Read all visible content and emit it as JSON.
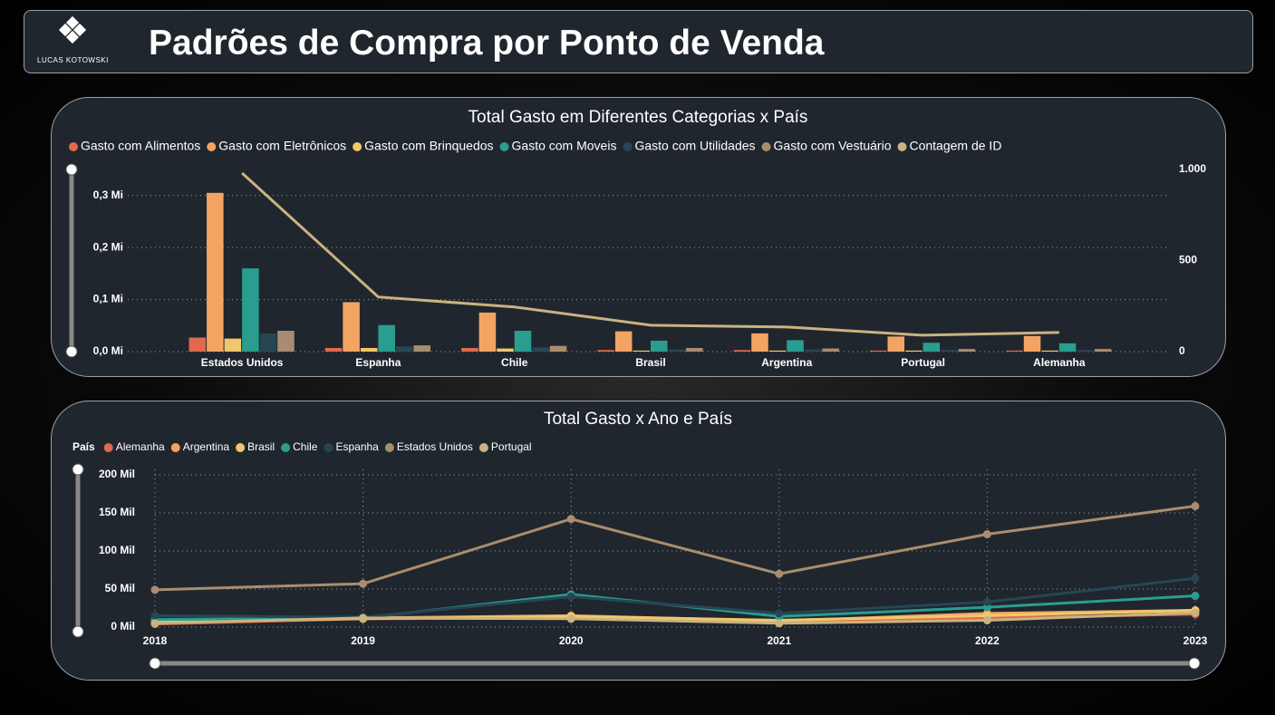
{
  "header": {
    "logo_text": "LUCAS KOTOWSKI",
    "title": "Padrões de Compra por Ponto de Venda"
  },
  "chart_data": [
    {
      "type": "bar",
      "title": "Total Gasto em Diferentes Categorias x País",
      "categories": [
        "Estados Unidos",
        "Espanha",
        "Chile",
        "Brasil",
        "Argentina",
        "Portugal",
        "Alemanha"
      ],
      "series": [
        {
          "name": "Gasto com Alimentos",
          "color": "#e0694f",
          "values": [
            27000,
            7000,
            7000,
            3000,
            3000,
            2000,
            2000
          ]
        },
        {
          "name": "Gasto com Eletrônicos",
          "color": "#f4a462",
          "values": [
            305000,
            95000,
            75000,
            39000,
            35000,
            29000,
            30000
          ]
        },
        {
          "name": "Gasto com Brinquedos",
          "color": "#f0c86b",
          "values": [
            25000,
            7000,
            6000,
            2000,
            2000,
            2000,
            2000
          ]
        },
        {
          "name": "Gasto com Moveis",
          "color": "#2a9d8f",
          "values": [
            160000,
            51000,
            40000,
            21000,
            22000,
            17000,
            16000
          ]
        },
        {
          "name": "Gasto com Utilidades",
          "color": "#264653",
          "values": [
            35000,
            10000,
            8000,
            4000,
            4000,
            3000,
            3000
          ]
        },
        {
          "name": "Gasto com Vestuário",
          "color": "#a98d70",
          "values": [
            40000,
            12000,
            11000,
            7000,
            6000,
            5000,
            5000
          ]
        },
        {
          "name": "Contagem de ID",
          "color": "#c9b380",
          "type": "line",
          "axis": "y2",
          "values": [
            980,
            300,
            245,
            145,
            135,
            90,
            105
          ]
        }
      ],
      "ylim": [
        0,
        350000
      ],
      "yticks": [
        {
          "value": 0,
          "label": "0,0 Mi"
        },
        {
          "value": 100000,
          "label": "0,1 Mi"
        },
        {
          "value": 200000,
          "label": "0,2 Mi"
        },
        {
          "value": 300000,
          "label": "0,3 Mi"
        }
      ],
      "y2lim": [
        0,
        1000
      ],
      "y2ticks": [
        0,
        500,
        {
          "value": 1000,
          "label": "1.000"
        }
      ],
      "grid": true
    },
    {
      "type": "line",
      "title": "Total Gasto x Ano e País",
      "legend_title": "País",
      "x": [
        2018,
        2019,
        2020,
        2021,
        2022,
        2023
      ],
      "series": [
        {
          "name": "Alemanha",
          "color": "#e0694f",
          "values": [
            4000,
            11000,
            12000,
            6000,
            12000,
            17000
          ]
        },
        {
          "name": "Argentina",
          "color": "#f4a462",
          "values": [
            6000,
            12000,
            15000,
            8000,
            18000,
            22000
          ]
        },
        {
          "name": "Brasil",
          "color": "#f0c86b",
          "values": [
            7000,
            11000,
            14000,
            9000,
            15000,
            22000
          ]
        },
        {
          "name": "Chile",
          "color": "#2a9d8f",
          "values": [
            10000,
            12000,
            43000,
            14000,
            26000,
            41000
          ]
        },
        {
          "name": "Espanha",
          "color": "#264653",
          "values": [
            15000,
            13000,
            40000,
            18000,
            33000,
            64000
          ]
        },
        {
          "name": "Estados Unidos",
          "color": "#a98d70",
          "values": [
            49000,
            57000,
            142000,
            70000,
            122000,
            159000
          ]
        },
        {
          "name": "Portugal",
          "color": "#c9b380",
          "values": [
            5000,
            12000,
            11000,
            5000,
            9000,
            19000
          ]
        }
      ],
      "xlim": [
        2018,
        2023
      ],
      "xticks": [
        2018,
        2019,
        2020,
        2021,
        2022,
        2023
      ],
      "ylim": [
        0,
        200000
      ],
      "yticks": [
        {
          "value": 0,
          "label": "0 Mil"
        },
        {
          "value": 50000,
          "label": "50 Mil"
        },
        {
          "value": 100000,
          "label": "100 Mil"
        },
        {
          "value": 150000,
          "label": "150 Mil"
        },
        {
          "value": 200000,
          "label": "200 Mil"
        }
      ],
      "grid": true
    }
  ]
}
